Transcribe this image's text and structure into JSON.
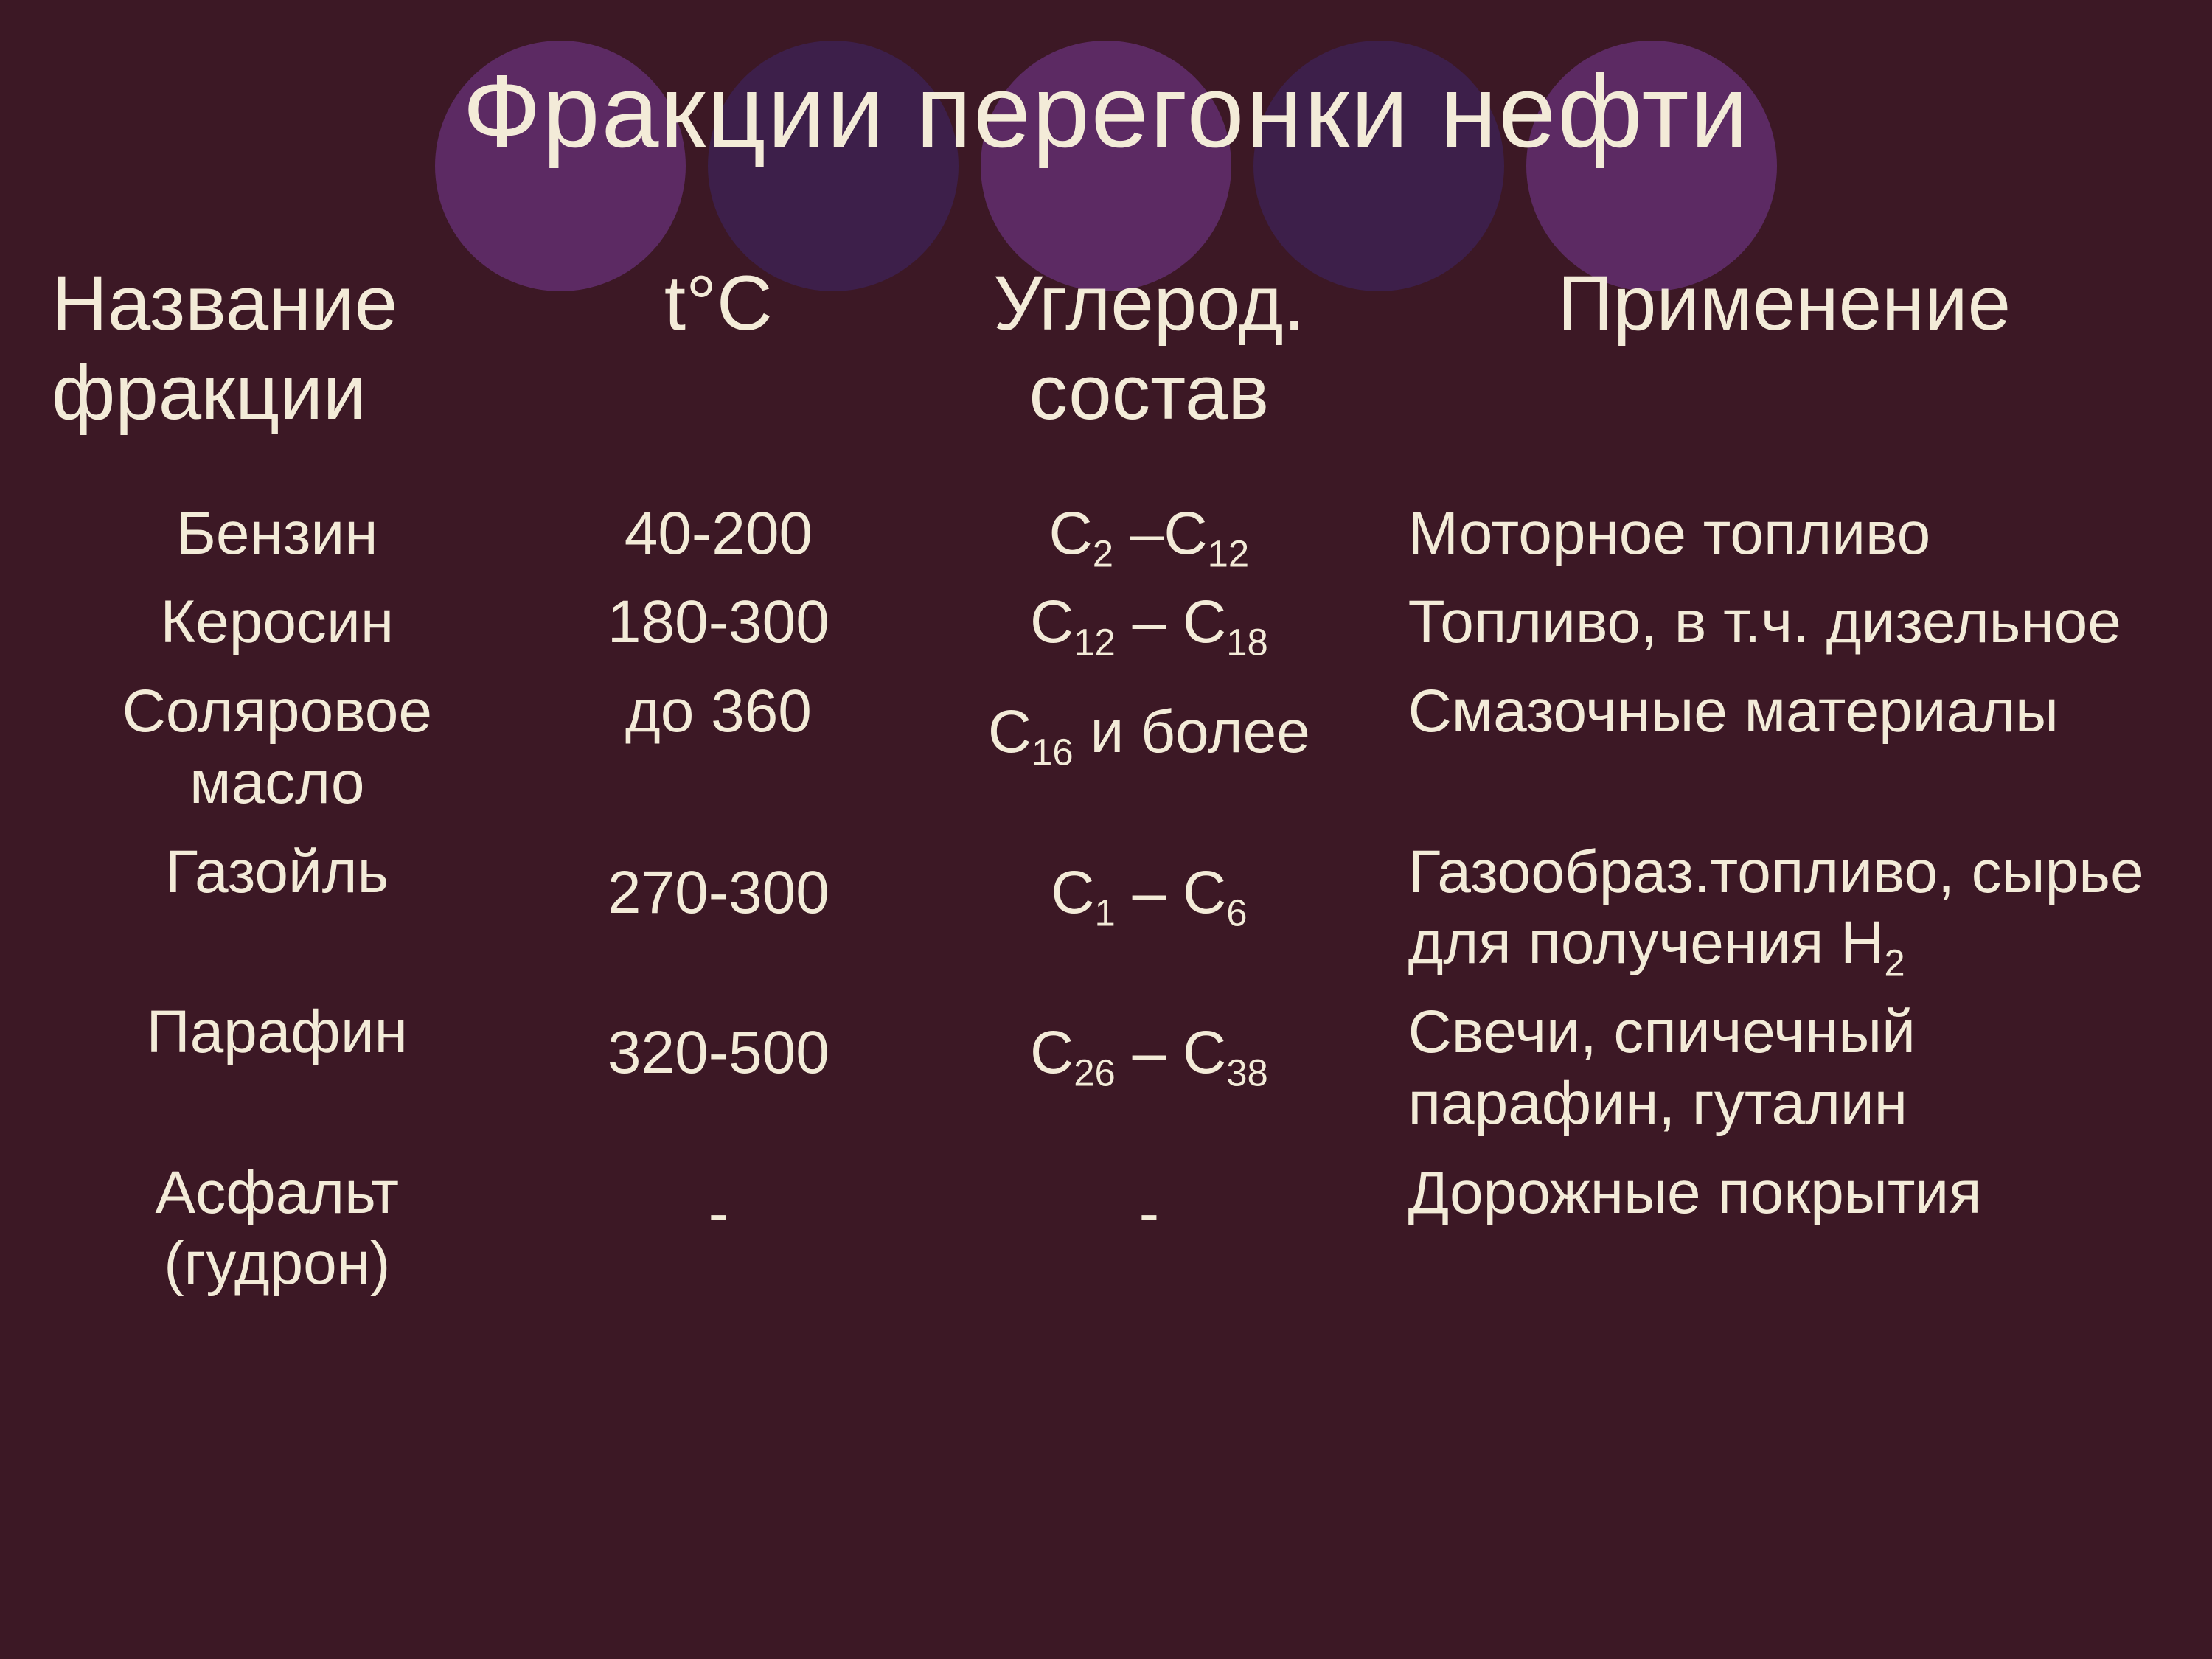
{
  "title": "Фракции перегонки нефти",
  "background_color": "#3c1825",
  "text_color": "#f3ebd8",
  "circles": [
    "#5c2a63",
    "#3d1f4a",
    "#5c2a63",
    "#3d1f4a",
    "#5c2a63"
  ],
  "columns": {
    "name": "Название фракции",
    "temp": "t°C",
    "carbon": "Углерод. состав",
    "app": "Применение"
  },
  "rows": [
    {
      "name": "Бензин",
      "temp": "40-200",
      "carbon_html": "C<sub>2</sub> –C<sub>12</sub>",
      "app_html": "Моторное топливо"
    },
    {
      "name": "Керосин",
      "temp": "180-300",
      "carbon_html": "C<sub>12</sub> – C<sub>18</sub>",
      "app_html": "Топливо, в т.ч. дизельное"
    },
    {
      "name": "Соляровое масло",
      "temp": "до 360",
      "carbon_html": "C<sub>16</sub> и более",
      "app_html": "Смазочные материалы"
    },
    {
      "name": "Газойль",
      "temp": "270-300",
      "carbon_html": "C<sub>1</sub> – C<sub>6</sub>",
      "app_html": "Газообраз.топливо, сырье для получения H<sub>2</sub>"
    },
    {
      "name": "Парафин",
      "temp": "320-500",
      "carbon_html": "C<sub>26</sub> – C<sub>38</sub>",
      "app_html": "Свечи, спичечный парафин, гуталин"
    },
    {
      "name": "Асфальт (гудрон)",
      "temp": "-",
      "carbon_html": "-",
      "app_html": "Дорожные покрытия"
    }
  ]
}
